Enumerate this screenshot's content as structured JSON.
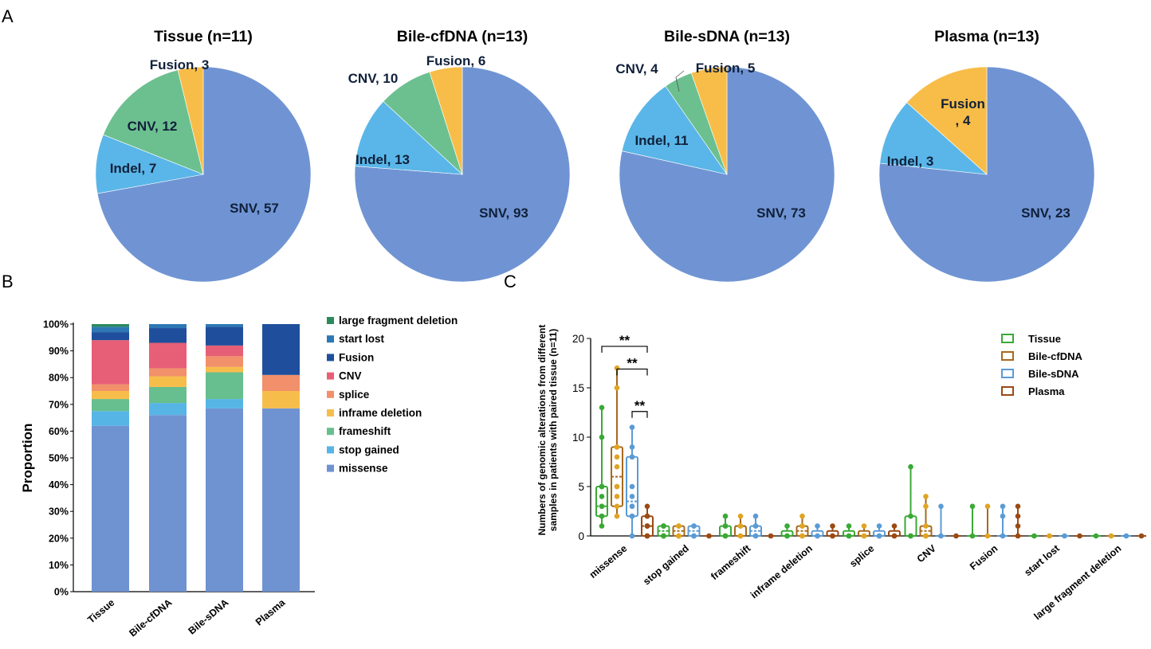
{
  "panel_labels": {
    "a": "A",
    "b": "B",
    "c": "C"
  },
  "chart_data": [
    {
      "type": "pie",
      "panel": "A",
      "title": "Tissue (n=11)",
      "slices": [
        {
          "label": "SNV",
          "value": 57,
          "text": "SNV, 57"
        },
        {
          "label": "Indel",
          "value": 7,
          "text": "Indel, 7"
        },
        {
          "label": "CNV",
          "value": 12,
          "text": "CNV, 12"
        },
        {
          "label": "Fusion",
          "value": 3,
          "text": "Fusion, 3"
        }
      ]
    },
    {
      "type": "pie",
      "panel": "A",
      "title": "Bile-cfDNA (n=13)",
      "slices": [
        {
          "label": "SNV",
          "value": 93,
          "text": "SNV, 93"
        },
        {
          "label": "Indel",
          "value": 13,
          "text": "Indel, 13"
        },
        {
          "label": "CNV",
          "value": 10,
          "text": "CNV, 10"
        },
        {
          "label": "Fusion",
          "value": 6,
          "text": "Fusion, 6"
        }
      ]
    },
    {
      "type": "pie",
      "panel": "A",
      "title": "Bile-sDNA (n=13)",
      "slices": [
        {
          "label": "SNV",
          "value": 73,
          "text": "SNV, 73"
        },
        {
          "label": "Indel",
          "value": 11,
          "text": "Indel, 11"
        },
        {
          "label": "CNV",
          "value": 4,
          "text": "CNV, 4"
        },
        {
          "label": "Fusion",
          "value": 5,
          "text": "Fusion, 5"
        }
      ]
    },
    {
      "type": "pie",
      "panel": "A",
      "title": "Plasma (n=13)",
      "slices": [
        {
          "label": "SNV",
          "value": 23,
          "text": "SNV, 23"
        },
        {
          "label": "Indel",
          "value": 3,
          "text": "Indel, 3"
        },
        {
          "label": "CNV",
          "value": 0,
          "text": ""
        },
        {
          "label": "Fusion",
          "value": 4,
          "text": "Fusion\n, 4"
        }
      ]
    },
    {
      "type": "bar",
      "stacked": true,
      "panel": "B",
      "ylabel": "Proportion",
      "ylim": [
        0,
        100
      ],
      "yticks": [
        "0%",
        "10%",
        "20%",
        "30%",
        "40%",
        "50%",
        "60%",
        "70%",
        "80%",
        "90%",
        "100%"
      ],
      "categories": [
        "Tissue",
        "Bile-cfDNA",
        "Bile-sDNA",
        "Plasma"
      ],
      "legend_position": "right",
      "series": [
        {
          "name": "missense",
          "values": [
            62,
            66,
            68.5,
            68.5
          ]
        },
        {
          "name": "stop gained",
          "values": [
            5.5,
            4.5,
            3.5,
            0
          ]
        },
        {
          "name": "frameshift",
          "values": [
            4.5,
            6,
            10,
            0
          ]
        },
        {
          "name": "inframe deletion",
          "values": [
            3,
            4,
            2,
            6.5
          ]
        },
        {
          "name": "splice",
          "values": [
            2.5,
            3,
            4,
            6
          ]
        },
        {
          "name": "CNV",
          "values": [
            16.5,
            9.5,
            4,
            0
          ]
        },
        {
          "name": "Fusion",
          "values": [
            3,
            5.5,
            7,
            19
          ]
        },
        {
          "name": "start lost",
          "values": [
            2,
            1.5,
            1,
            0
          ]
        },
        {
          "name": "large fragment deletion",
          "values": [
            1,
            0,
            0,
            0
          ]
        }
      ],
      "legend_order": [
        "large fragment deletion",
        "start lost",
        "Fusion",
        "CNV",
        "splice",
        "inframe deletion",
        "frameshift",
        "stop gained",
        "missense"
      ]
    },
    {
      "type": "box",
      "panel": "C",
      "ylabel_lines": [
        "Numbers of genomic alterations from different",
        "samples in patients with paired tissue (n=11)"
      ],
      "ylim": [
        0,
        20
      ],
      "yticks": [
        0,
        5,
        10,
        15,
        20
      ],
      "categories": [
        "missense",
        "stop gained",
        "frameshift",
        "inframe deletion",
        "splice",
        "CNV",
        "Fusion",
        "start lost",
        "large fragment deletion"
      ],
      "legend": [
        "Tissue",
        "Bile-cfDNA",
        "Bile-sDNA",
        "Plasma"
      ],
      "legend_position": "top-right",
      "significance": [
        {
          "from_category": "missense",
          "from_group": "Tissue",
          "to_group": "Plasma",
          "y": 19.2,
          "label": "**"
        },
        {
          "from_category": "missense",
          "from_group": "Bile-cfDNA",
          "to_group": "Plasma",
          "y": 16.9,
          "label": "**"
        },
        {
          "from_category": "missense",
          "from_group": "Bile-sDNA",
          "to_group": "Plasma",
          "y": 12.6,
          "label": "**"
        }
      ],
      "groups": [
        {
          "category": "missense",
          "group": "Tissue",
          "min": 1,
          "q1": 2,
          "median": 3,
          "q3": 5,
          "max": 13,
          "points": [
            1,
            2,
            2,
            3,
            3,
            4,
            5,
            5,
            5,
            10,
            13
          ]
        },
        {
          "category": "missense",
          "group": "Bile-cfDNA",
          "min": 2,
          "q1": 3,
          "median": 6,
          "q3": 9,
          "max": 17,
          "points": [
            2,
            3,
            4,
            5,
            5,
            7,
            8,
            9,
            9,
            15,
            17
          ]
        },
        {
          "category": "missense",
          "group": "Bile-sDNA",
          "min": 0,
          "q1": 2,
          "median": 3.5,
          "q3": 8,
          "max": 11,
          "points": [
            0,
            2,
            2,
            3,
            3,
            4,
            5,
            8,
            8,
            9,
            11
          ]
        },
        {
          "category": "missense",
          "group": "Plasma",
          "min": 0,
          "q1": 0,
          "median": 1,
          "q3": 2,
          "max": 3,
          "points": [
            0,
            0,
            0,
            1,
            1,
            1,
            2,
            2,
            3
          ]
        },
        {
          "category": "stop gained",
          "group": "Tissue",
          "min": 0,
          "q1": 0,
          "median": 0.5,
          "q3": 1,
          "max": 1,
          "points": [
            0,
            0,
            0,
            0,
            1,
            1,
            1
          ]
        },
        {
          "category": "stop gained",
          "group": "Bile-cfDNA",
          "min": 0,
          "q1": 0,
          "median": 0.5,
          "q3": 1,
          "max": 1,
          "points": [
            0,
            0,
            0,
            1,
            1,
            1
          ]
        },
        {
          "category": "stop gained",
          "group": "Bile-sDNA",
          "min": 0,
          "q1": 0,
          "median": 0.5,
          "q3": 1,
          "max": 1,
          "points": [
            0,
            0,
            0,
            1,
            1
          ]
        },
        {
          "category": "stop gained",
          "group": "Plasma",
          "min": 0,
          "q1": 0,
          "median": 0,
          "q3": 0,
          "max": 0,
          "points": [
            0
          ]
        },
        {
          "category": "frameshift",
          "group": "Tissue",
          "min": 0,
          "q1": 0,
          "median": 0,
          "q3": 1,
          "max": 2,
          "points": [
            0,
            0,
            0,
            1,
            1,
            2
          ]
        },
        {
          "category": "frameshift",
          "group": "Bile-cfDNA",
          "min": 0,
          "q1": 0,
          "median": 1,
          "q3": 1,
          "max": 2,
          "points": [
            0,
            0,
            1,
            1,
            2
          ]
        },
        {
          "category": "frameshift",
          "group": "Bile-sDNA",
          "min": 0,
          "q1": 0,
          "median": 0.5,
          "q3": 1,
          "max": 2,
          "points": [
            0,
            0,
            1,
            1,
            2
          ]
        },
        {
          "category": "frameshift",
          "group": "Plasma",
          "min": 0,
          "q1": 0,
          "median": 0,
          "q3": 0,
          "max": 0,
          "points": [
            0
          ]
        },
        {
          "category": "inframe deletion",
          "group": "Tissue",
          "min": 0,
          "q1": 0,
          "median": 0,
          "q3": 0.5,
          "max": 1,
          "points": [
            0,
            0,
            1
          ]
        },
        {
          "category": "inframe deletion",
          "group": "Bile-cfDNA",
          "min": 0,
          "q1": 0,
          "median": 0.5,
          "q3": 1,
          "max": 2,
          "points": [
            0,
            0,
            1,
            1,
            2
          ]
        },
        {
          "category": "inframe deletion",
          "group": "Bile-sDNA",
          "min": 0,
          "q1": 0,
          "median": 0,
          "q3": 0.5,
          "max": 1,
          "points": [
            0,
            0,
            1
          ]
        },
        {
          "category": "inframe deletion",
          "group": "Plasma",
          "min": 0,
          "q1": 0,
          "median": 0,
          "q3": 0.5,
          "max": 1,
          "points": [
            0,
            0,
            1
          ]
        },
        {
          "category": "splice",
          "group": "Tissue",
          "min": 0,
          "q1": 0,
          "median": 0,
          "q3": 0.5,
          "max": 1,
          "points": [
            0,
            0,
            1
          ]
        },
        {
          "category": "splice",
          "group": "Bile-cfDNA",
          "min": 0,
          "q1": 0,
          "median": 0,
          "q3": 0.5,
          "max": 1,
          "points": [
            0,
            0,
            1
          ]
        },
        {
          "category": "splice",
          "group": "Bile-sDNA",
          "min": 0,
          "q1": 0,
          "median": 0,
          "q3": 0.5,
          "max": 1,
          "points": [
            0,
            0,
            1
          ]
        },
        {
          "category": "splice",
          "group": "Plasma",
          "min": 0,
          "q1": 0,
          "median": 0,
          "q3": 0.5,
          "max": 1,
          "points": [
            0,
            0,
            1
          ]
        },
        {
          "category": "CNV",
          "group": "Tissue",
          "min": 0,
          "q1": 0,
          "median": 0,
          "q3": 2,
          "max": 7,
          "points": [
            0,
            0,
            2,
            7
          ]
        },
        {
          "category": "CNV",
          "group": "Bile-cfDNA",
          "min": 0,
          "q1": 0,
          "median": 0.5,
          "q3": 1,
          "max": 4,
          "points": [
            0,
            0,
            1,
            3,
            4
          ]
        },
        {
          "category": "CNV",
          "group": "Bile-sDNA",
          "min": 0,
          "q1": 0,
          "median": 0,
          "q3": 0,
          "max": 3,
          "points": [
            0,
            3
          ]
        },
        {
          "category": "CNV",
          "group": "Plasma",
          "min": 0,
          "q1": 0,
          "median": 0,
          "q3": 0,
          "max": 0,
          "points": [
            0
          ]
        },
        {
          "category": "Fusion",
          "group": "Tissue",
          "min": 0,
          "q1": 0,
          "median": 0,
          "q3": 0,
          "max": 3,
          "points": [
            0,
            3
          ]
        },
        {
          "category": "Fusion",
          "group": "Bile-cfDNA",
          "min": 0,
          "q1": 0,
          "median": 0,
          "q3": 0,
          "max": 3,
          "points": [
            0,
            3
          ]
        },
        {
          "category": "Fusion",
          "group": "Bile-sDNA",
          "min": 0,
          "q1": 0,
          "median": 0,
          "q3": 0,
          "max": 3,
          "points": [
            0,
            2,
            3
          ]
        },
        {
          "category": "Fusion",
          "group": "Plasma",
          "min": 0,
          "q1": 0,
          "median": 0,
          "q3": 0,
          "max": 3,
          "points": [
            0,
            1,
            2,
            3
          ]
        },
        {
          "category": "start lost",
          "group": "Tissue",
          "min": 0,
          "q1": 0,
          "median": 0,
          "q3": 0,
          "max": 0,
          "points": [
            0
          ]
        },
        {
          "category": "start lost",
          "group": "Bile-cfDNA",
          "min": 0,
          "q1": 0,
          "median": 0,
          "q3": 0,
          "max": 0,
          "points": [
            0
          ]
        },
        {
          "category": "start lost",
          "group": "Bile-sDNA",
          "min": 0,
          "q1": 0,
          "median": 0,
          "q3": 0,
          "max": 0,
          "points": [
            0
          ]
        },
        {
          "category": "start lost",
          "group": "Plasma",
          "min": 0,
          "q1": 0,
          "median": 0,
          "q3": 0,
          "max": 0,
          "points": [
            0
          ]
        },
        {
          "category": "large fragment deletion",
          "group": "Tissue",
          "min": 0,
          "q1": 0,
          "median": 0,
          "q3": 0,
          "max": 0,
          "points": [
            0
          ]
        },
        {
          "category": "large fragment deletion",
          "group": "Bile-cfDNA",
          "min": 0,
          "q1": 0,
          "median": 0,
          "q3": 0,
          "max": 0,
          "points": [
            0
          ]
        },
        {
          "category": "large fragment deletion",
          "group": "Bile-sDNA",
          "min": 0,
          "q1": 0,
          "median": 0,
          "q3": 0,
          "max": 0,
          "points": [
            0
          ]
        },
        {
          "category": "large fragment deletion",
          "group": "Plasma",
          "min": 0,
          "q1": 0,
          "median": 0,
          "q3": 0,
          "max": 0,
          "points": [
            0
          ]
        }
      ]
    }
  ],
  "colors": {
    "pie": {
      "SNV": "#7094d3",
      "Indel": "#5ab6e8",
      "CNV": "#6cc08f",
      "Fusion": "#f8bd48"
    },
    "stack": {
      "missense": "#6f93d1",
      "stop gained": "#57b5e6",
      "frameshift": "#67be8e",
      "inframe deletion": "#f7bd4b",
      "splice": "#f1906a",
      "CNV": "#e75f76",
      "Fusion": "#1f4f9c",
      "start lost": "#2d78b4",
      "large fragment deletion": "#2a8a5c"
    },
    "box": {
      "Tissue": "#3aa935",
      "Bile-cfDNA": "#a66a1e",
      "Bile-sDNA": "#5b9bd5",
      "Plasma": "#9b4a14",
      "Bile-cfDNA-points": "#e0a423",
      "Plasma-points": "#9b4a14"
    }
  }
}
